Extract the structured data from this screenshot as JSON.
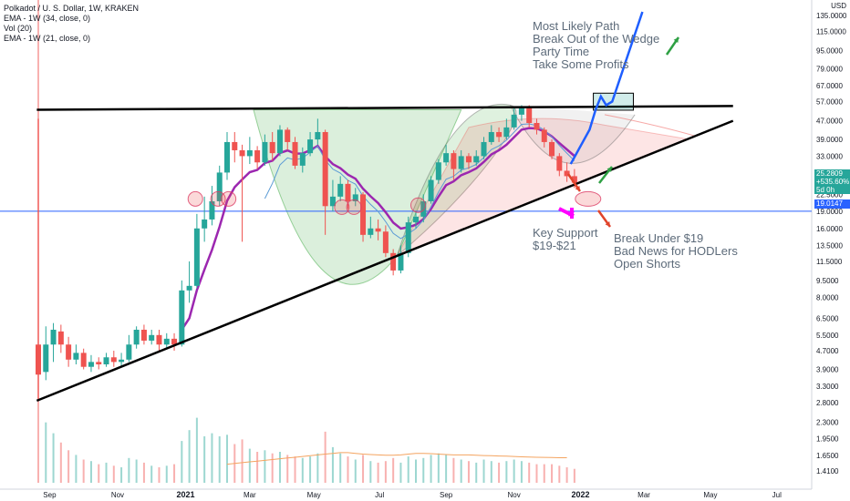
{
  "legend": {
    "title": "Polkadot / U. S. Dollar, 1W, KRAKEN",
    "ema34": "EMA - 1W (34, close, 0)",
    "vol": "Vol (20)",
    "ema21": "EMA - 1W (21, close, 0)"
  },
  "currency": "USD",
  "notes": {
    "most_likely": [
      "Most Likely Path",
      "Break Out of the Wedge",
      "Party Time",
      "Take Some Profits"
    ],
    "key_support": [
      "Key Support",
      "$19-$21"
    ],
    "break_under": [
      "Break Under $19",
      "Bad News for HODLers",
      "Open Shorts"
    ]
  },
  "price_badge": {
    "price": "25.2809",
    "change": "+535.60%",
    "countdown": "5d 0h",
    "color": "#26a69a"
  },
  "level_badge": {
    "price": "19.0147",
    "color": "#2962ff"
  },
  "colors": {
    "up": "#26a69a",
    "down": "#ef5350",
    "ema34": "#9c27b0",
    "ema21": "#5b9bd5",
    "vol_ma": "#f4a460",
    "trend": "#000000",
    "path": "#1e5eff"
  },
  "chart_data": {
    "type": "candlestick",
    "title": "Polkadot / U. S. Dollar, 1W, KRAKEN",
    "y_scale": "log",
    "y_ticks": [
      135,
      115,
      95,
      79,
      67,
      57,
      47,
      39,
      33,
      27,
      22.5,
      19,
      16,
      13.5,
      11.5,
      9.5,
      8,
      6.5,
      5.5,
      4.7,
      3.9,
      3.3,
      2.8,
      2.3,
      1.95,
      1.65,
      1.41
    ],
    "y_tick_labels": [
      "135.0000",
      "115.0000",
      "95.0000",
      "79.0000",
      "67.0000",
      "57.0000",
      "47.0000",
      "39.0000",
      "33.0000",
      "27.0000",
      "22.5000",
      "19.0000",
      "16.0000",
      "13.5000",
      "11.5000",
      "9.5000",
      "8.0000",
      "6.5000",
      "5.5000",
      "4.7000",
      "3.9000",
      "3.3000",
      "2.8000",
      "2.3000",
      "1.9500",
      "1.6500",
      "1.4100"
    ],
    "x_ticks": [
      {
        "label": "Sep",
        "week": 1.5,
        "bold": false
      },
      {
        "label": "Nov",
        "week": 10.5,
        "bold": false
      },
      {
        "label": "2021",
        "week": 19.5,
        "bold": true
      },
      {
        "label": "Mar",
        "week": 28.0,
        "bold": false
      },
      {
        "label": "May",
        "week": 36.5,
        "bold": false
      },
      {
        "label": "Jul",
        "week": 45.2,
        "bold": false
      },
      {
        "label": "Sep",
        "week": 54.0,
        "bold": false
      },
      {
        "label": "Nov",
        "week": 63.0,
        "bold": false
      },
      {
        "label": "2022",
        "week": 71.8,
        "bold": true
      },
      {
        "label": "Mar",
        "week": 80.2,
        "bold": false
      },
      {
        "label": "May",
        "week": 89.0,
        "bold": false
      },
      {
        "label": "Jul",
        "week": 97.8,
        "bold": false
      }
    ],
    "candles": [
      [
        5.0,
        3.7,
        48,
        2.9,
        48
      ],
      [
        3.8,
        5.0,
        6.0,
        3.5,
        3.9
      ],
      [
        5.0,
        5.8,
        6.2,
        4.2,
        3.2
      ],
      [
        5.7,
        5.0,
        6.1,
        4.6,
        2.6
      ],
      [
        5.0,
        4.3,
        5.4,
        4.0,
        2.1
      ],
      [
        4.3,
        4.6,
        5.0,
        4.1,
        1.8
      ],
      [
        4.6,
        4.0,
        4.8,
        3.9,
        1.5
      ],
      [
        4.0,
        4.2,
        4.5,
        3.8,
        1.4
      ],
      [
        4.2,
        4.1,
        4.4,
        3.9,
        1.2
      ],
      [
        4.1,
        4.4,
        4.6,
        4.0,
        1.3
      ],
      [
        4.4,
        4.2,
        4.7,
        4.0,
        1.1
      ],
      [
        4.2,
        4.3,
        4.6,
        4.0,
        1.0
      ],
      [
        4.3,
        5.0,
        5.5,
        4.2,
        1.6
      ],
      [
        5.0,
        5.8,
        6.0,
        4.8,
        1.5
      ],
      [
        5.8,
        5.2,
        6.1,
        5.0,
        1.3
      ],
      [
        5.2,
        5.5,
        5.8,
        5.0,
        1.1
      ],
      [
        5.5,
        5.0,
        5.8,
        4.7,
        1.0
      ],
      [
        5.0,
        5.3,
        5.6,
        4.8,
        1.1
      ],
      [
        5.3,
        5.0,
        5.6,
        4.7,
        1.2
      ],
      [
        5.0,
        8.6,
        9.5,
        4.9,
        2.7
      ],
      [
        8.6,
        9.0,
        11.5,
        7.6,
        3.4
      ],
      [
        9.0,
        16.0,
        18.5,
        8.8,
        4.2
      ],
      [
        16.0,
        17.5,
        22.0,
        14.0,
        3.0
      ],
      [
        17.5,
        21.0,
        24.5,
        16.5,
        3.2
      ],
      [
        21.0,
        28.0,
        30.0,
        20.0,
        3.0
      ],
      [
        28.0,
        38.0,
        42.0,
        26.0,
        3.1
      ],
      [
        38.0,
        35.0,
        42.0,
        31.0,
        2.5
      ],
      [
        35.0,
        33.0,
        37.0,
        14.0,
        2.8
      ],
      [
        33.0,
        35.0,
        40.0,
        30.5,
        2.2
      ],
      [
        35.0,
        31.0,
        36.5,
        29.0,
        2.0
      ],
      [
        31.0,
        38.0,
        41.0,
        30.0,
        2.1
      ],
      [
        38.0,
        34.0,
        42.0,
        31.5,
        1.9
      ],
      [
        34.0,
        43.0,
        45.0,
        33.0,
        2.0
      ],
      [
        43.0,
        38.0,
        44.0,
        35.0,
        1.8
      ],
      [
        38.0,
        30.0,
        40.0,
        29.0,
        1.7
      ],
      [
        30.0,
        34.0,
        36.0,
        28.0,
        1.6
      ],
      [
        34.0,
        39.0,
        42.0,
        33.0,
        1.7
      ],
      [
        39.0,
        42.0,
        48.0,
        37.0,
        1.9
      ],
      [
        42.0,
        20.0,
        43.0,
        15.0,
        3.3
      ],
      [
        20.0,
        22.0,
        26.0,
        19.0,
        2.3
      ],
      [
        22.0,
        25.0,
        27.0,
        21.0,
        1.9
      ],
      [
        25.0,
        21.0,
        26.0,
        19.5,
        1.7
      ],
      [
        21.0,
        22.5,
        24.0,
        20.0,
        1.5
      ],
      [
        22.5,
        15.0,
        23.0,
        14.0,
        1.8
      ],
      [
        15.0,
        16.0,
        18.0,
        14.5,
        1.4
      ],
      [
        16.0,
        15.5,
        17.5,
        14.2,
        1.3
      ],
      [
        15.5,
        12.5,
        16.5,
        12.0,
        1.4
      ],
      [
        12.5,
        10.5,
        13.0,
        10.0,
        1.6
      ],
      [
        10.5,
        12.5,
        13.5,
        10.2,
        1.3
      ],
      [
        12.5,
        17.0,
        18.0,
        12.0,
        1.7
      ],
      [
        17.0,
        18.0,
        19.0,
        16.0,
        1.5
      ],
      [
        18.0,
        21.0,
        22.5,
        17.0,
        1.6
      ],
      [
        21.0,
        26.0,
        27.0,
        20.5,
        1.8
      ],
      [
        26.0,
        31.0,
        32.0,
        25.0,
        1.9
      ],
      [
        31.0,
        34.0,
        37.0,
        30.0,
        1.8
      ],
      [
        34.0,
        29.0,
        35.0,
        26.0,
        1.6
      ],
      [
        29.0,
        33.0,
        35.0,
        28.0,
        1.5
      ],
      [
        33.0,
        31.0,
        34.0,
        29.0,
        1.4
      ],
      [
        31.0,
        33.0,
        35.0,
        30.0,
        1.3
      ],
      [
        33.0,
        38.0,
        40.0,
        32.0,
        1.5
      ],
      [
        38.0,
        42.0,
        45.0,
        37.0,
        1.4
      ],
      [
        42.0,
        40.0,
        44.0,
        38.0,
        1.3
      ],
      [
        40.0,
        44.0,
        48.0,
        39.0,
        1.4
      ],
      [
        44.0,
        50.0,
        54.0,
        43.0,
        1.5
      ],
      [
        50.0,
        54.0,
        55.0,
        47.0,
        1.4
      ],
      [
        54.0,
        46.0,
        55.0,
        44.0,
        1.3
      ],
      [
        46.0,
        43.0,
        48.0,
        41.0,
        1.2
      ],
      [
        43.0,
        38.0,
        44.0,
        36.0,
        1.2
      ],
      [
        38.0,
        33.0,
        39.0,
        32.0,
        1.2
      ],
      [
        33.0,
        28.5,
        34.0,
        27.0,
        1.1
      ],
      [
        28.5,
        27.0,
        31.0,
        25.5,
        1.0
      ],
      [
        27.0,
        25.3,
        29.0,
        24.0,
        0.9
      ]
    ],
    "ema34_start": 5.0,
    "ema21_start": 15.0,
    "ema21_from_week": 30,
    "vol_ma": [
      1.2,
      1.25,
      1.3,
      1.35,
      1.4,
      1.45,
      1.5,
      1.55,
      1.6,
      1.65,
      1.7,
      1.75,
      1.8,
      1.85,
      1.9,
      1.95,
      1.95,
      1.9,
      1.85,
      1.82,
      1.8,
      1.78,
      1.78,
      1.8,
      1.85,
      1.9,
      1.9,
      1.88,
      1.85,
      1.82,
      1.8,
      1.8,
      1.8,
      1.78,
      1.76,
      1.75,
      1.73,
      1.72,
      1.7,
      1.68,
      1.66,
      1.65,
      1.64,
      1.63,
      1.62,
      1.62
    ],
    "vol_ma_from_week": 25,
    "horizontal_line": 19.0147,
    "upper_trendline": [
      [
        -0.2,
        52.5
      ],
      [
        92.0,
        54.5
      ]
    ],
    "lower_trendline": [
      [
        -0.2,
        2.85
      ],
      [
        92.0,
        47.0
      ]
    ],
    "breakout_box": {
      "x": [
        73.5,
        78.8
      ],
      "y": [
        52.3,
        62.0
      ]
    },
    "projection": [
      [
        70.5,
        30.5
      ],
      [
        73.0,
        43.0
      ],
      [
        73.8,
        52.5
      ],
      [
        74.5,
        60.0
      ],
      [
        75.2,
        55.0
      ],
      [
        76.0,
        57.0
      ],
      [
        80.0,
        140.0
      ]
    ]
  }
}
